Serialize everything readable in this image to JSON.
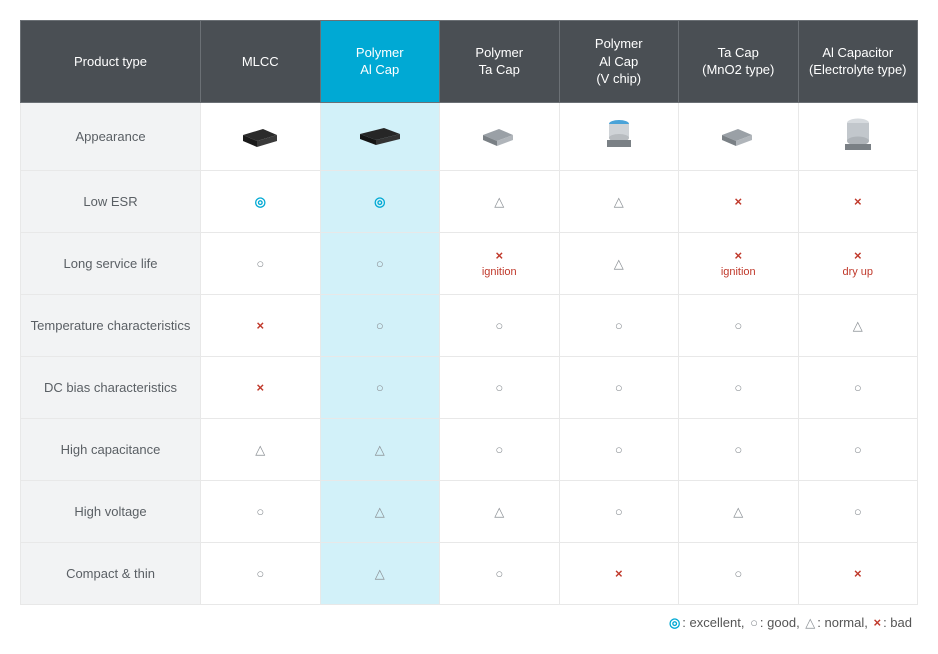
{
  "table": {
    "columns": [
      {
        "label": "Product type",
        "highlight": false
      },
      {
        "label": "MLCC",
        "highlight": false
      },
      {
        "label": "Polymer\nAl Cap",
        "highlight": true
      },
      {
        "label": "Polymer\nTa Cap",
        "highlight": false
      },
      {
        "label": "Polymer\nAl Cap\n(V chip)",
        "highlight": false
      },
      {
        "label": "Ta Cap\n(MnO2 type)",
        "highlight": false
      },
      {
        "label": "Al Capacitor\n(Electrolyte type)",
        "highlight": false
      }
    ],
    "highlight_col_index": 2,
    "row_labels": [
      "Appearance",
      "Low ESR",
      "Long service life",
      "Temperature characteristics",
      "DC bias characteristics",
      "High capacitance",
      "High voltage",
      "Compact & thin"
    ],
    "symbols": {
      "excellent": "◎",
      "good": "○",
      "normal": "△",
      "bad": "×"
    },
    "symbol_colors": {
      "excellent": "#00a9d4",
      "good": "#8a8f94",
      "normal": "#8a8f94",
      "bad": "#c0392b"
    },
    "appearance_icons": [
      "mlcc",
      "polymer-al",
      "polymer-ta",
      "polymer-al-vchip",
      "ta-cap",
      "al-cap"
    ],
    "data_rows": [
      [
        {
          "rating": "excellent"
        },
        {
          "rating": "excellent"
        },
        {
          "rating": "normal"
        },
        {
          "rating": "normal"
        },
        {
          "rating": "bad"
        },
        {
          "rating": "bad"
        }
      ],
      [
        {
          "rating": "good"
        },
        {
          "rating": "good"
        },
        {
          "rating": "bad",
          "note": "ignition"
        },
        {
          "rating": "normal"
        },
        {
          "rating": "bad",
          "note": "ignition"
        },
        {
          "rating": "bad",
          "note": "dry up"
        }
      ],
      [
        {
          "rating": "bad"
        },
        {
          "rating": "good"
        },
        {
          "rating": "good"
        },
        {
          "rating": "good"
        },
        {
          "rating": "good"
        },
        {
          "rating": "normal"
        }
      ],
      [
        {
          "rating": "bad"
        },
        {
          "rating": "good"
        },
        {
          "rating": "good"
        },
        {
          "rating": "good"
        },
        {
          "rating": "good"
        },
        {
          "rating": "good"
        }
      ],
      [
        {
          "rating": "normal"
        },
        {
          "rating": "normal"
        },
        {
          "rating": "good"
        },
        {
          "rating": "good"
        },
        {
          "rating": "good"
        },
        {
          "rating": "good"
        }
      ],
      [
        {
          "rating": "good"
        },
        {
          "rating": "normal"
        },
        {
          "rating": "normal"
        },
        {
          "rating": "good"
        },
        {
          "rating": "normal"
        },
        {
          "rating": "good"
        }
      ],
      [
        {
          "rating": "good"
        },
        {
          "rating": "normal"
        },
        {
          "rating": "good"
        },
        {
          "rating": "bad"
        },
        {
          "rating": "good"
        },
        {
          "rating": "bad"
        }
      ]
    ],
    "legend_parts": {
      "p1": ": excellent, ",
      "p2": ": good, ",
      "p3": ": normal, ",
      "p4": ": bad"
    }
  },
  "colors": {
    "header_bg": "#4a4f54",
    "highlight_header_bg": "#00a9d4",
    "highlight_cell_bg": "#d2f1f9",
    "row_label_bg": "#f2f3f4",
    "border": "#e8e8e8"
  }
}
